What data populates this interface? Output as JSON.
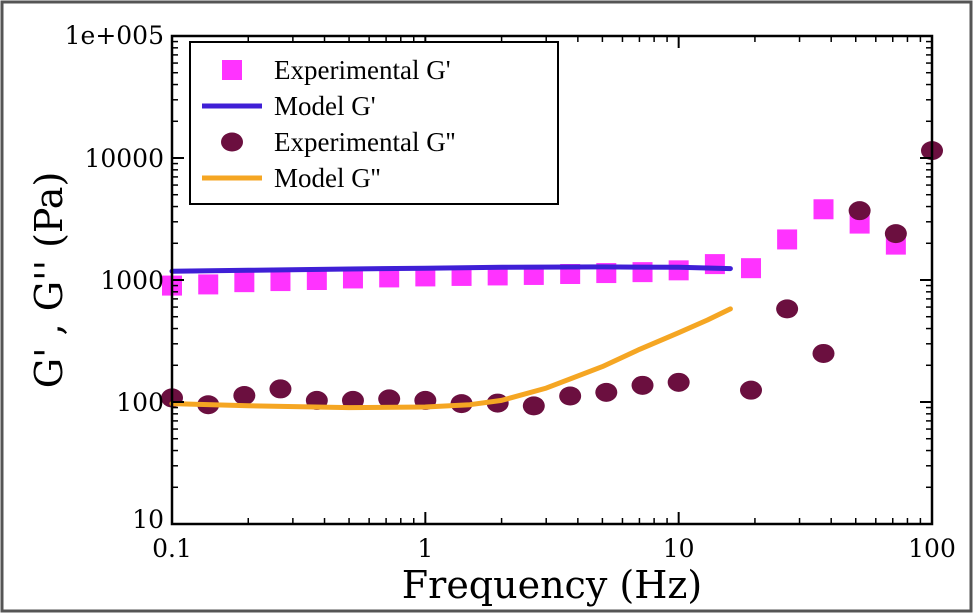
{
  "chart_data": {
    "type": "scatter",
    "title": "",
    "xlabel": "Frequency (Hz)",
    "ylabel": "G' , G'' (Pa)",
    "xscale": "log",
    "yscale": "log",
    "xlim": [
      0.1,
      100
    ],
    "ylim": [
      10,
      100000
    ],
    "x_ticks": [
      {
        "value": 0.1,
        "label": "0.1"
      },
      {
        "value": 1,
        "label": "1"
      },
      {
        "value": 10,
        "label": "10"
      },
      {
        "value": 100,
        "label": "100"
      }
    ],
    "y_ticks": [
      {
        "value": 10,
        "label": "10"
      },
      {
        "value": 100,
        "label": "100"
      },
      {
        "value": 1000,
        "label": "1000"
      },
      {
        "value": 10000,
        "label": "10000"
      },
      {
        "value": 100000,
        "label": "1e+005"
      }
    ],
    "legend_position": "top-left",
    "grid": false,
    "series": [
      {
        "name": "Experimental G'",
        "kind": "marker",
        "marker": "square",
        "color": "#ff33ff",
        "x": [
          0.1,
          0.139,
          0.193,
          0.268,
          0.373,
          0.518,
          0.72,
          1.0,
          1.39,
          1.93,
          2.68,
          3.73,
          5.18,
          7.2,
          10.0,
          13.9,
          19.3,
          26.8,
          37.3,
          51.8,
          72.0
        ],
        "y": [
          900,
          920,
          960,
          980,
          1000,
          1030,
          1050,
          1070,
          1080,
          1090,
          1100,
          1120,
          1140,
          1160,
          1200,
          1350,
          1250,
          2150,
          3800,
          2900,
          1950
        ]
      },
      {
        "name": "Model G'",
        "kind": "line",
        "color": "#3f1fd6",
        "x": [
          0.1,
          0.2,
          0.5,
          1.0,
          2.0,
          5.0,
          10.0,
          16.0
        ],
        "y": [
          1180,
          1200,
          1230,
          1250,
          1270,
          1280,
          1270,
          1240
        ]
      },
      {
        "name": "Experimental G''",
        "kind": "marker",
        "marker": "circle",
        "color": "#6b0f3f",
        "x": [
          0.1,
          0.139,
          0.193,
          0.268,
          0.373,
          0.518,
          0.72,
          1.0,
          1.39,
          1.93,
          2.68,
          3.73,
          5.18,
          7.2,
          10.0,
          19.3,
          26.8,
          37.3,
          51.8,
          72.0,
          100.0
        ],
        "y": [
          108,
          95,
          113,
          128,
          103,
          103,
          106,
          103,
          97,
          98,
          93,
          112,
          120,
          137,
          145,
          125,
          580,
          250,
          3700,
          2400,
          11500
        ]
      },
      {
        "name": "Model G''",
        "kind": "line",
        "color": "#f5a623",
        "x": [
          0.1,
          0.2,
          0.5,
          1.0,
          1.5,
          2.0,
          3.0,
          5.0,
          7.0,
          10.0,
          13.0,
          16.0
        ],
        "y": [
          97,
          93,
          90,
          91,
          95,
          103,
          130,
          195,
          270,
          370,
          470,
          580
        ]
      }
    ]
  }
}
